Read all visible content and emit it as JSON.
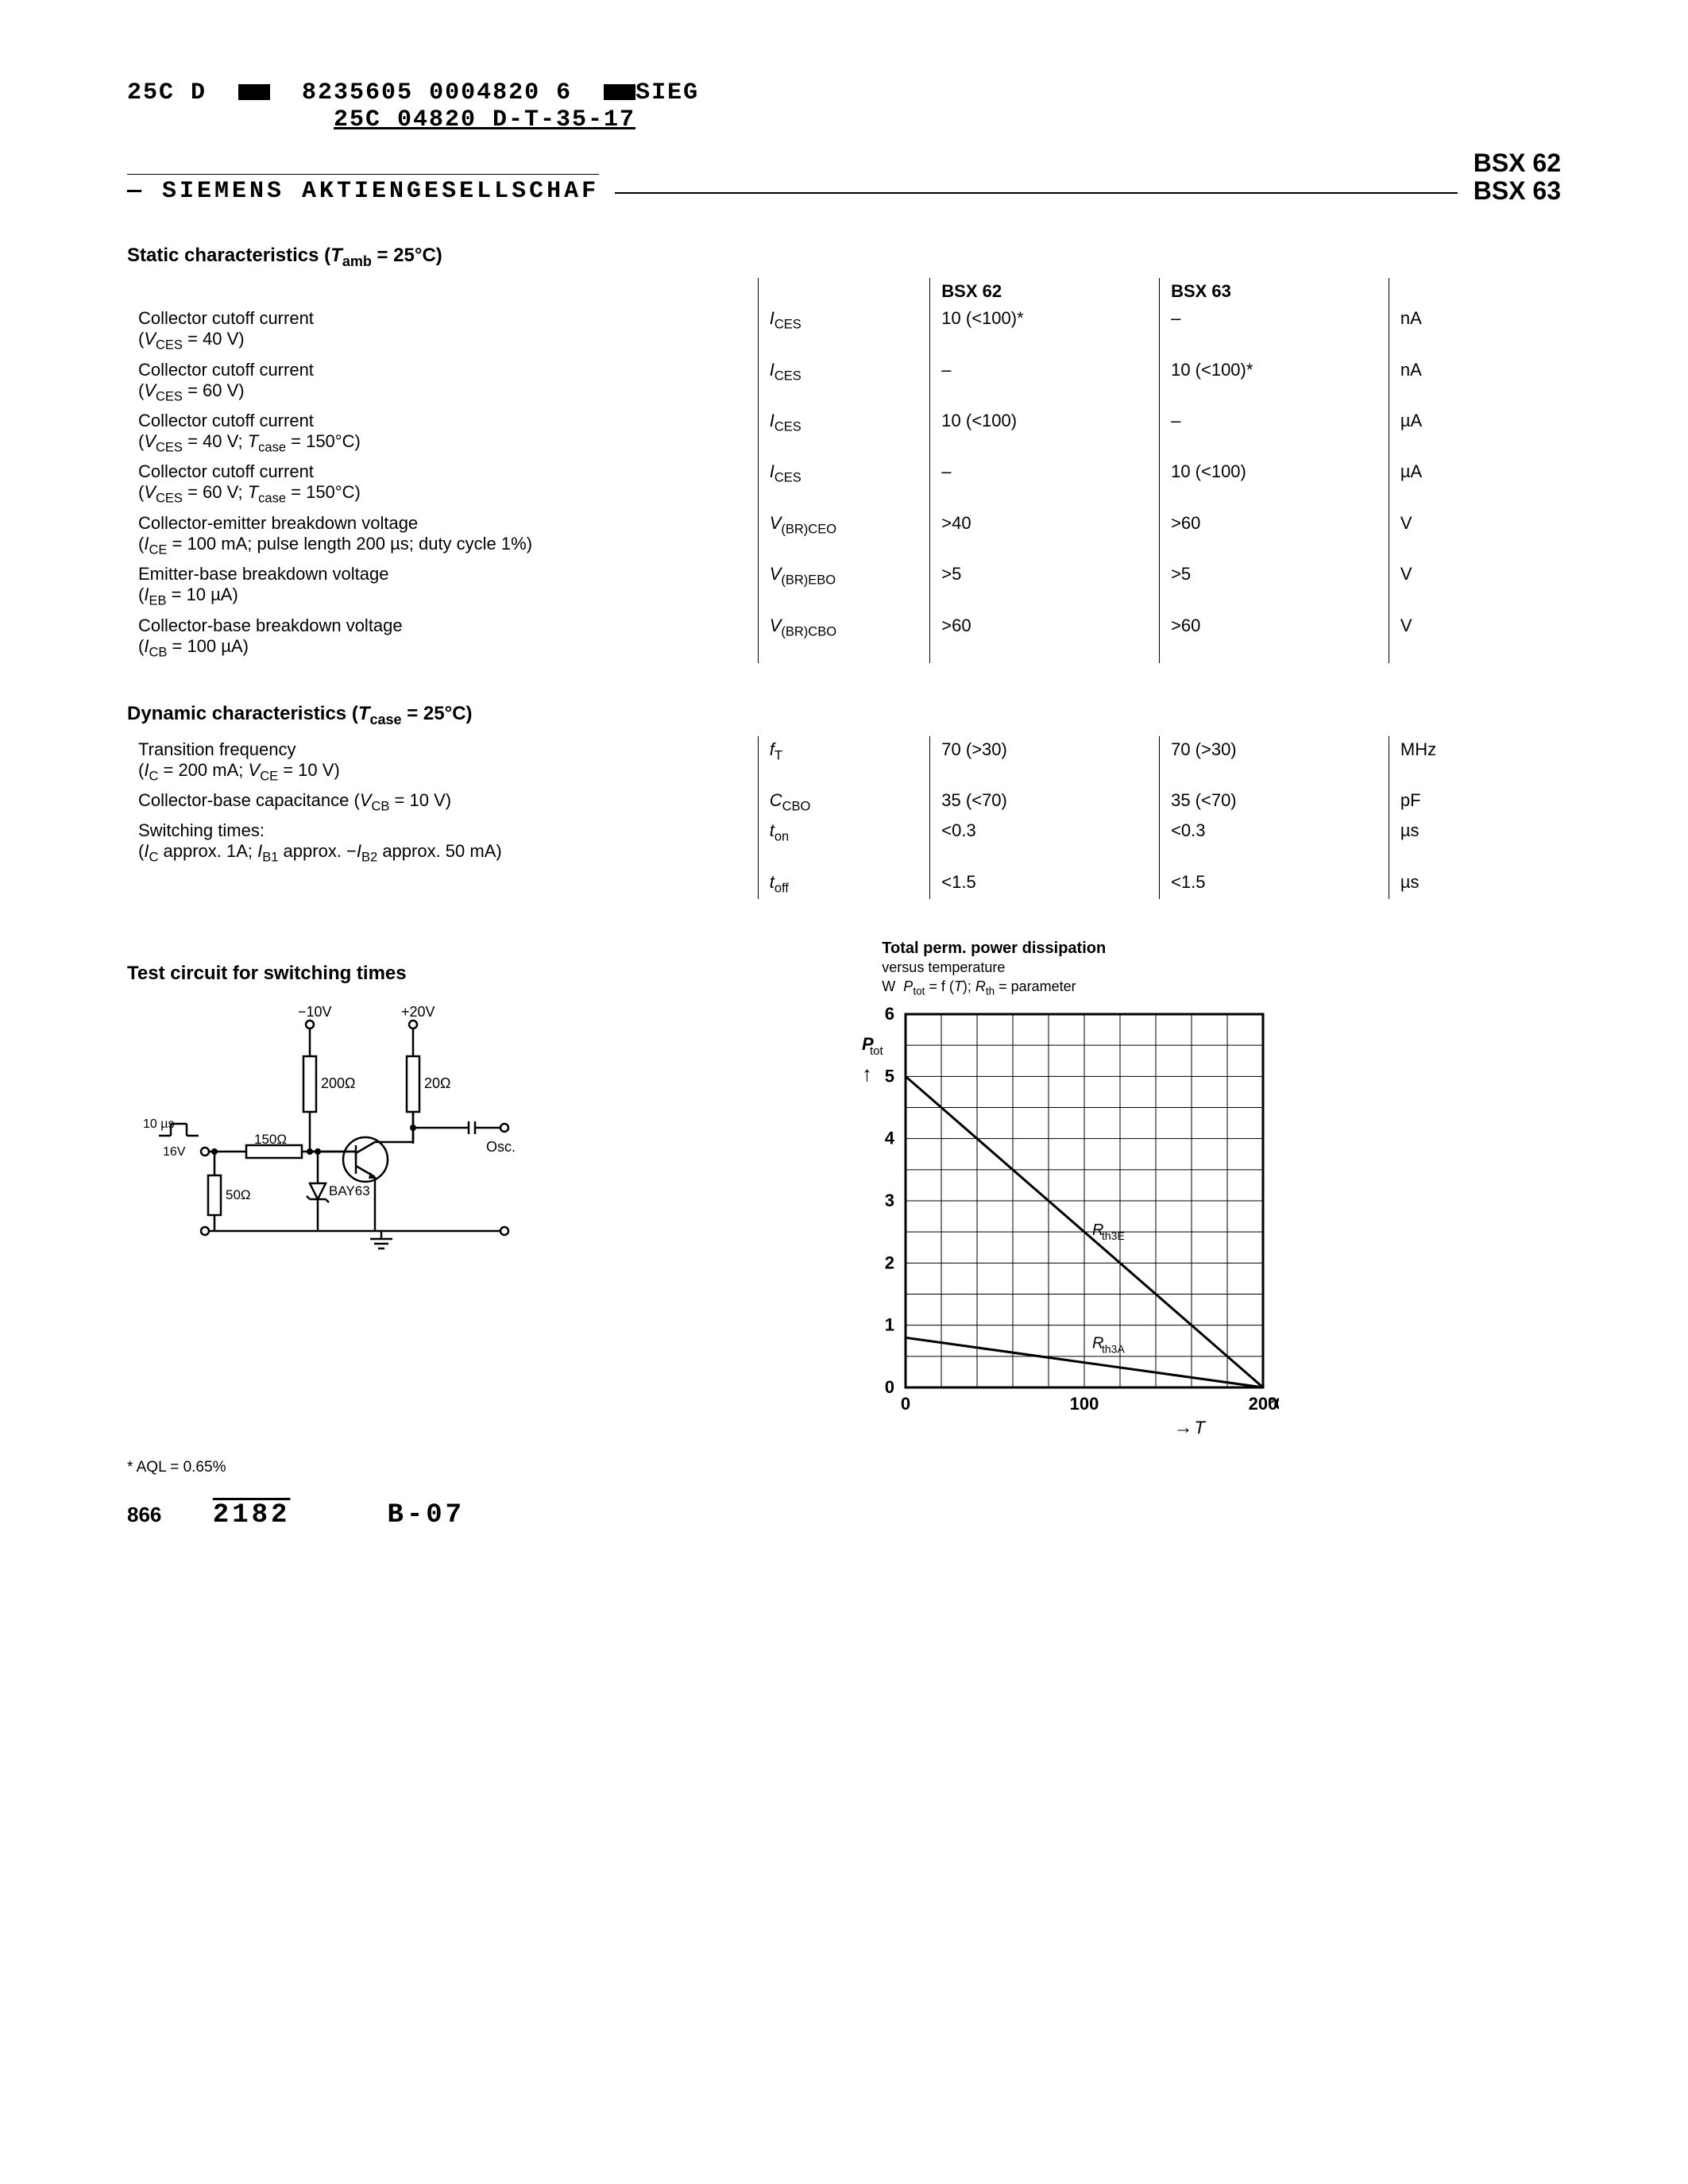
{
  "header": {
    "code_line1_a": "25C D",
    "code_line1_b": "8235605 0004820 6",
    "code_line1_c": "SIEG",
    "code_line2": "25C 04820   D-T-35-17",
    "company_prefix": "— ",
    "company": "SIEMENS AKTIENGESELLSCHAF",
    "part1": "BSX 62",
    "part2": "BSX 63"
  },
  "static": {
    "title": "Static characteristics (Tₐₘᵦ = 25°C)",
    "col1": "BSX 62",
    "col2": "BSX 63",
    "rows": [
      {
        "desc": "Collector cutoff current",
        "cond": "(V_CES = 40 V)",
        "sym": "I_CES",
        "v1": "10 (<100)*",
        "v2": "–",
        "unit": "nA"
      },
      {
        "desc": "Collector cutoff current",
        "cond": "(V_CES = 60 V)",
        "sym": "I_CES",
        "v1": "–",
        "v2": "10 (<100)*",
        "unit": "nA"
      },
      {
        "desc": "Collector cutoff current",
        "cond": "(V_CES = 40 V; T_case = 150°C)",
        "sym": "I_CES",
        "v1": "10 (<100)",
        "v2": "–",
        "unit": "µA"
      },
      {
        "desc": "Collector cutoff current",
        "cond": "(V_CES = 60 V; T_case = 150°C)",
        "sym": "I_CES",
        "v1": "–",
        "v2": "10 (<100)",
        "unit": "µA"
      },
      {
        "desc": "Collector-emitter breakdown voltage",
        "cond": "(I_CE = 100 mA; pulse length 200 µs; duty cycle 1%)",
        "sym": "V_(BR)CEO",
        "v1": ">40",
        "v2": ">60",
        "unit": "V"
      },
      {
        "desc": "Emitter-base breakdown voltage",
        "cond": "(I_EB = 10 µA)",
        "sym": "V_(BR)EBO",
        "v1": ">5",
        "v2": ">5",
        "unit": "V"
      },
      {
        "desc": "Collector-base breakdown voltage",
        "cond": "(I_CB = 100 µA)",
        "sym": "V_(BR)CBO",
        "v1": ">60",
        "v2": ">60",
        "unit": "V"
      }
    ]
  },
  "dynamic": {
    "title": "Dynamic characteristics (T_case = 25°C)",
    "rows": [
      {
        "desc": "Transition frequency",
        "cond": "(I_C = 200 mA; V_CE = 10 V)",
        "sym": "f_T",
        "v1": "70 (>30)",
        "v2": "70 (>30)",
        "unit": "MHz"
      },
      {
        "desc": "Collector-base capacitance (V_CB = 10 V)",
        "cond": "",
        "sym": "C_CBO",
        "v1": "35 (<70)",
        "v2": "35 (<70)",
        "unit": "pF"
      },
      {
        "desc": "Switching times:",
        "cond": "(I_C approx. 1A; I_B1 approx. −I_B2 approx. 50 mA)",
        "sym": "t_on",
        "v1": "<0.3",
        "v2": "<0.3",
        "unit": "µs"
      },
      {
        "desc": "",
        "cond": "",
        "sym": "t_off",
        "v1": "<1.5",
        "v2": "<1.5",
        "unit": "µs"
      }
    ]
  },
  "circuit": {
    "title": "Test circuit for switching times",
    "labels": {
      "vneg": "−10V",
      "vpos": "+20V",
      "r200a": "200Ω",
      "r20": "20Ω",
      "r150": "150Ω",
      "r50": "50Ω",
      "diode": "BAY63",
      "osc": "Osc.",
      "pulse_w": "10 µs",
      "pulse_v": "16V"
    },
    "stroke": "#000000",
    "stroke_width": 2.5
  },
  "chart": {
    "title1": "Total perm. power dissipation",
    "title2": "versus temperature",
    "title3": "W  P_tot = f (T); R_th = parameter",
    "ylab": "P_tot",
    "y_unit": "W",
    "x_unit": "°C",
    "x_arrow": "T",
    "xlim": [
      0,
      200
    ],
    "ylim": [
      0,
      6
    ],
    "xticks": [
      0,
      100,
      200
    ],
    "yticks": [
      0,
      1,
      2,
      3,
      4,
      5,
      6
    ],
    "grid_color": "#000000",
    "grid_minor_x_step": 20,
    "grid_minor_y_step": 0.5,
    "line_width": 3,
    "line_color": "#000000",
    "lines": [
      {
        "label": "R_th3E",
        "points": [
          [
            0,
            5
          ],
          [
            200,
            0
          ]
        ]
      },
      {
        "label": "R_th3A",
        "points": [
          [
            0,
            0.8
          ],
          [
            200,
            0
          ]
        ]
      }
    ]
  },
  "footnote": "* AQL = 0.65%",
  "footer": {
    "page": "866",
    "code1": "2182",
    "code2": "B-07"
  }
}
